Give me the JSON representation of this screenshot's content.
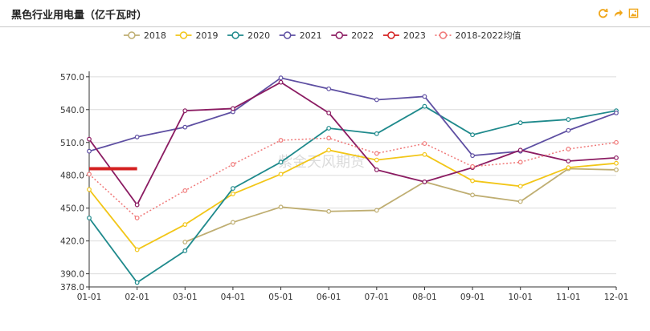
{
  "title": "黑色行业用电量（亿千瓦时）",
  "toolbar": {
    "icons": [
      "refresh-icon",
      "share-icon",
      "save-image-icon"
    ],
    "accent": "#f0a61a"
  },
  "watermark": "紫金天风期货",
  "chart_data": {
    "type": "line",
    "title": "黑色行业用电量（亿千瓦时）",
    "xlabel": "",
    "ylabel": "",
    "x": [
      "01-01",
      "02-01",
      "03-01",
      "04-01",
      "05-01",
      "06-01",
      "07-01",
      "08-01",
      "09-01",
      "10-01",
      "11-01",
      "12-01"
    ],
    "y_ticks": [
      "378.0",
      "390.0",
      "420.0",
      "450.0",
      "480.0",
      "510.0",
      "540.0",
      "570.0"
    ],
    "ylim": [
      378,
      575
    ],
    "grid": true,
    "legend_position": "top",
    "series": [
      {
        "name": "2018",
        "color": "#bfae72",
        "style": "solid",
        "values": [
          null,
          null,
          419,
          437,
          451,
          447,
          448,
          474,
          462,
          456,
          486,
          485
        ]
      },
      {
        "name": "2019",
        "color": "#f2c618",
        "style": "solid",
        "values": [
          467,
          412,
          435,
          463,
          481,
          503,
          494,
          499,
          475,
          470,
          487,
          491
        ]
      },
      {
        "name": "2020",
        "color": "#1f8a8c",
        "style": "solid",
        "values": [
          441,
          382,
          411,
          468,
          492,
          523,
          518,
          543,
          517,
          528,
          531,
          539
        ]
      },
      {
        "name": "2021",
        "color": "#5e4fa2",
        "style": "solid",
        "values": [
          502,
          515,
          524,
          538,
          569,
          559,
          549,
          552,
          498,
          502,
          521,
          537
        ]
      },
      {
        "name": "2022",
        "color": "#8b1c62",
        "style": "solid",
        "values": [
          513,
          453,
          539,
          541,
          565,
          537,
          485,
          474,
          487,
          503,
          493,
          496
        ]
      },
      {
        "name": "2023",
        "color": "#d42020",
        "style": "bold",
        "values": [
          486,
          486,
          null,
          null,
          null,
          null,
          null,
          null,
          null,
          null,
          null,
          null
        ]
      },
      {
        "name": "2018-2022均值",
        "color": "#f07878",
        "style": "dotted",
        "values": [
          481,
          441,
          466,
          490,
          512,
          514,
          500,
          509,
          488,
          492,
          504,
          510
        ]
      }
    ]
  }
}
